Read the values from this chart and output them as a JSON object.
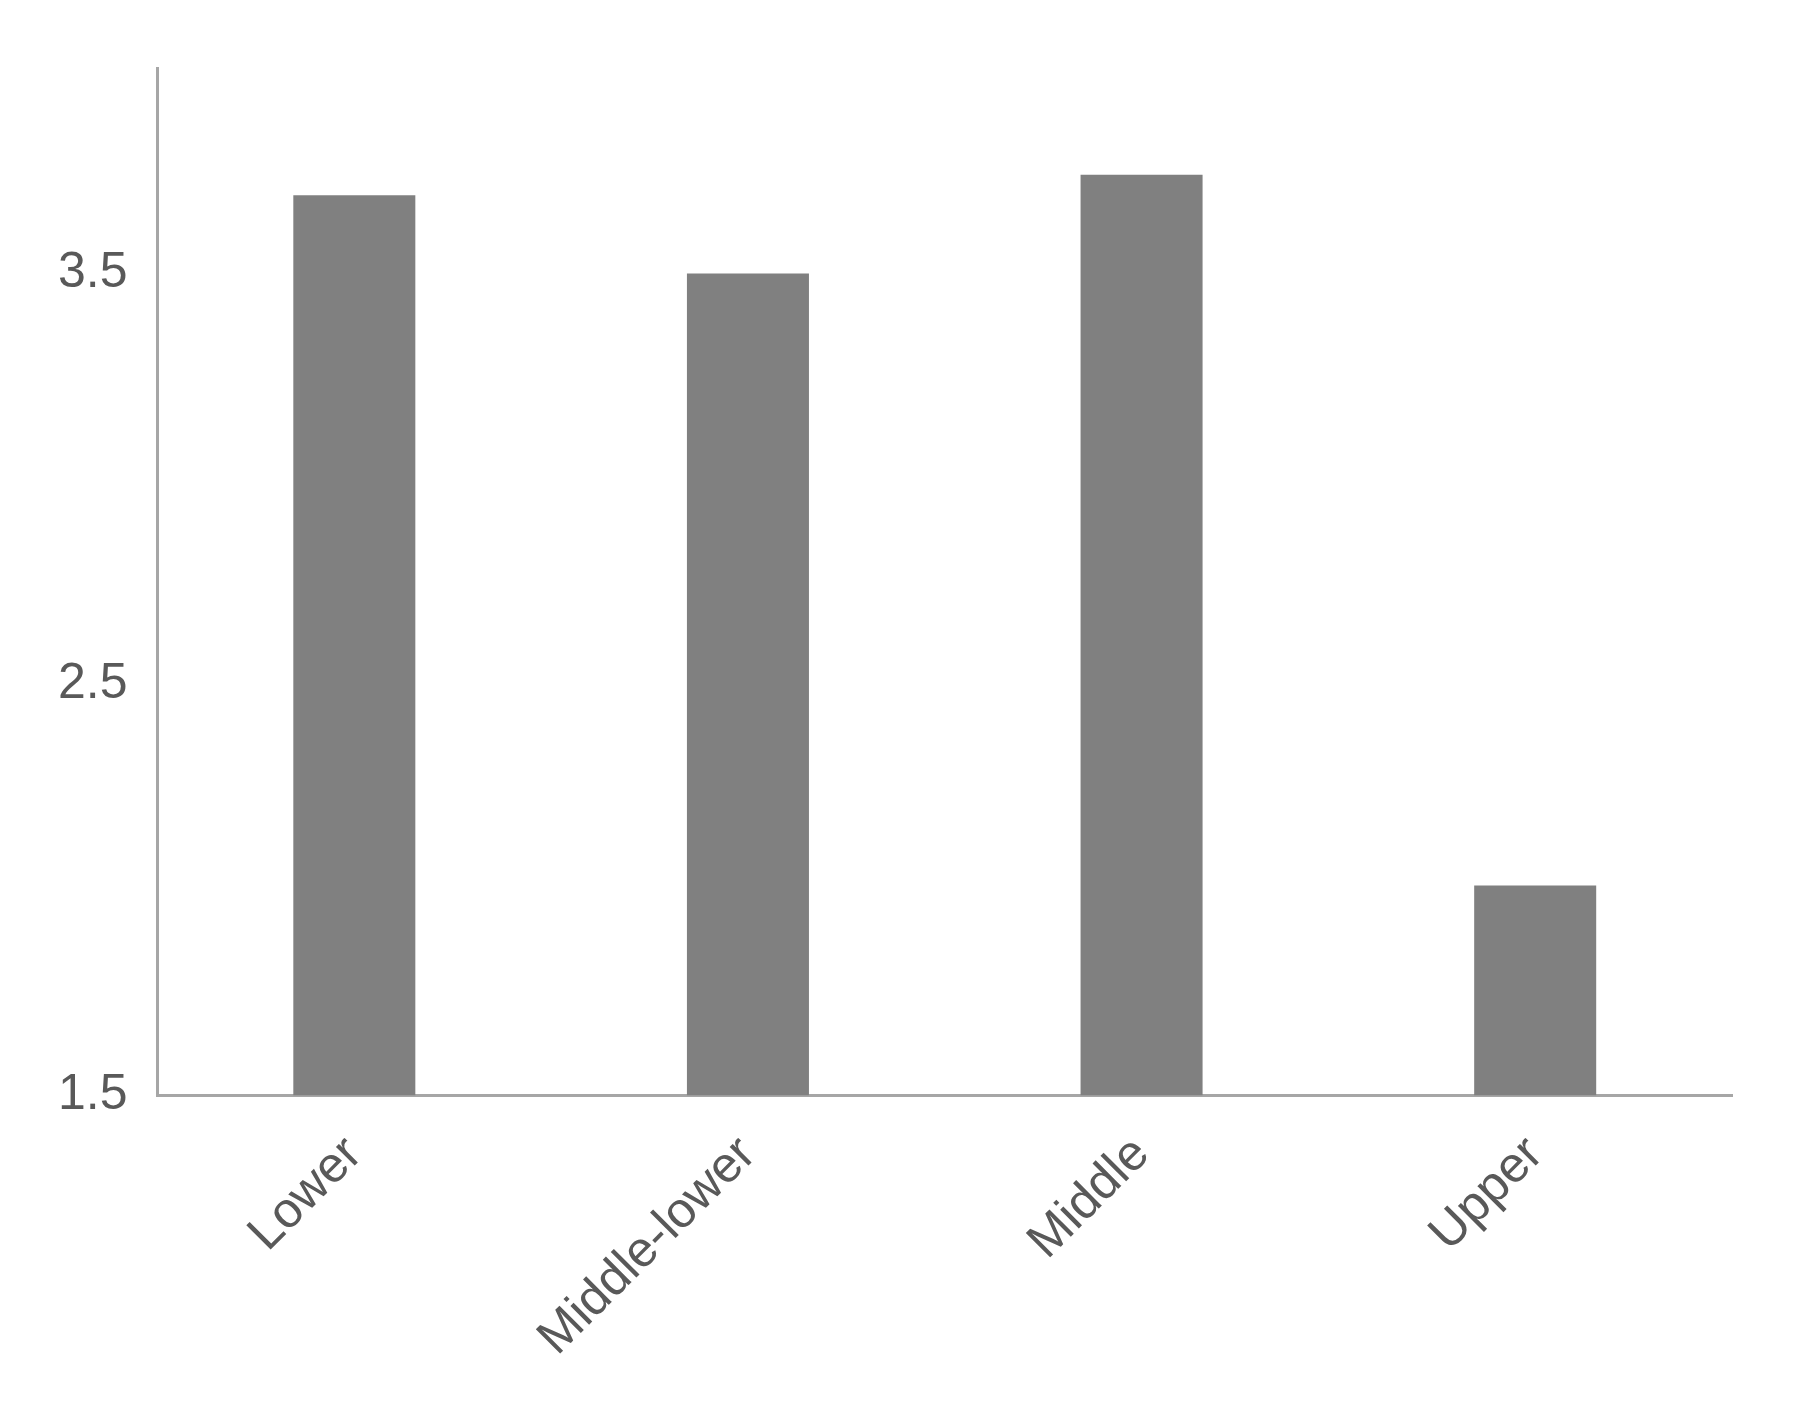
{
  "chart_data": {
    "type": "bar",
    "categories": [
      "Lower",
      "Middle-lower",
      "Middle",
      "Upper"
    ],
    "values": [
      3.69,
      3.5,
      3.74,
      2.01
    ],
    "color": "#808080",
    "ylim": [
      1.5,
      4.0
    ],
    "yticks": [
      1.5,
      2.5,
      3.5
    ]
  }
}
